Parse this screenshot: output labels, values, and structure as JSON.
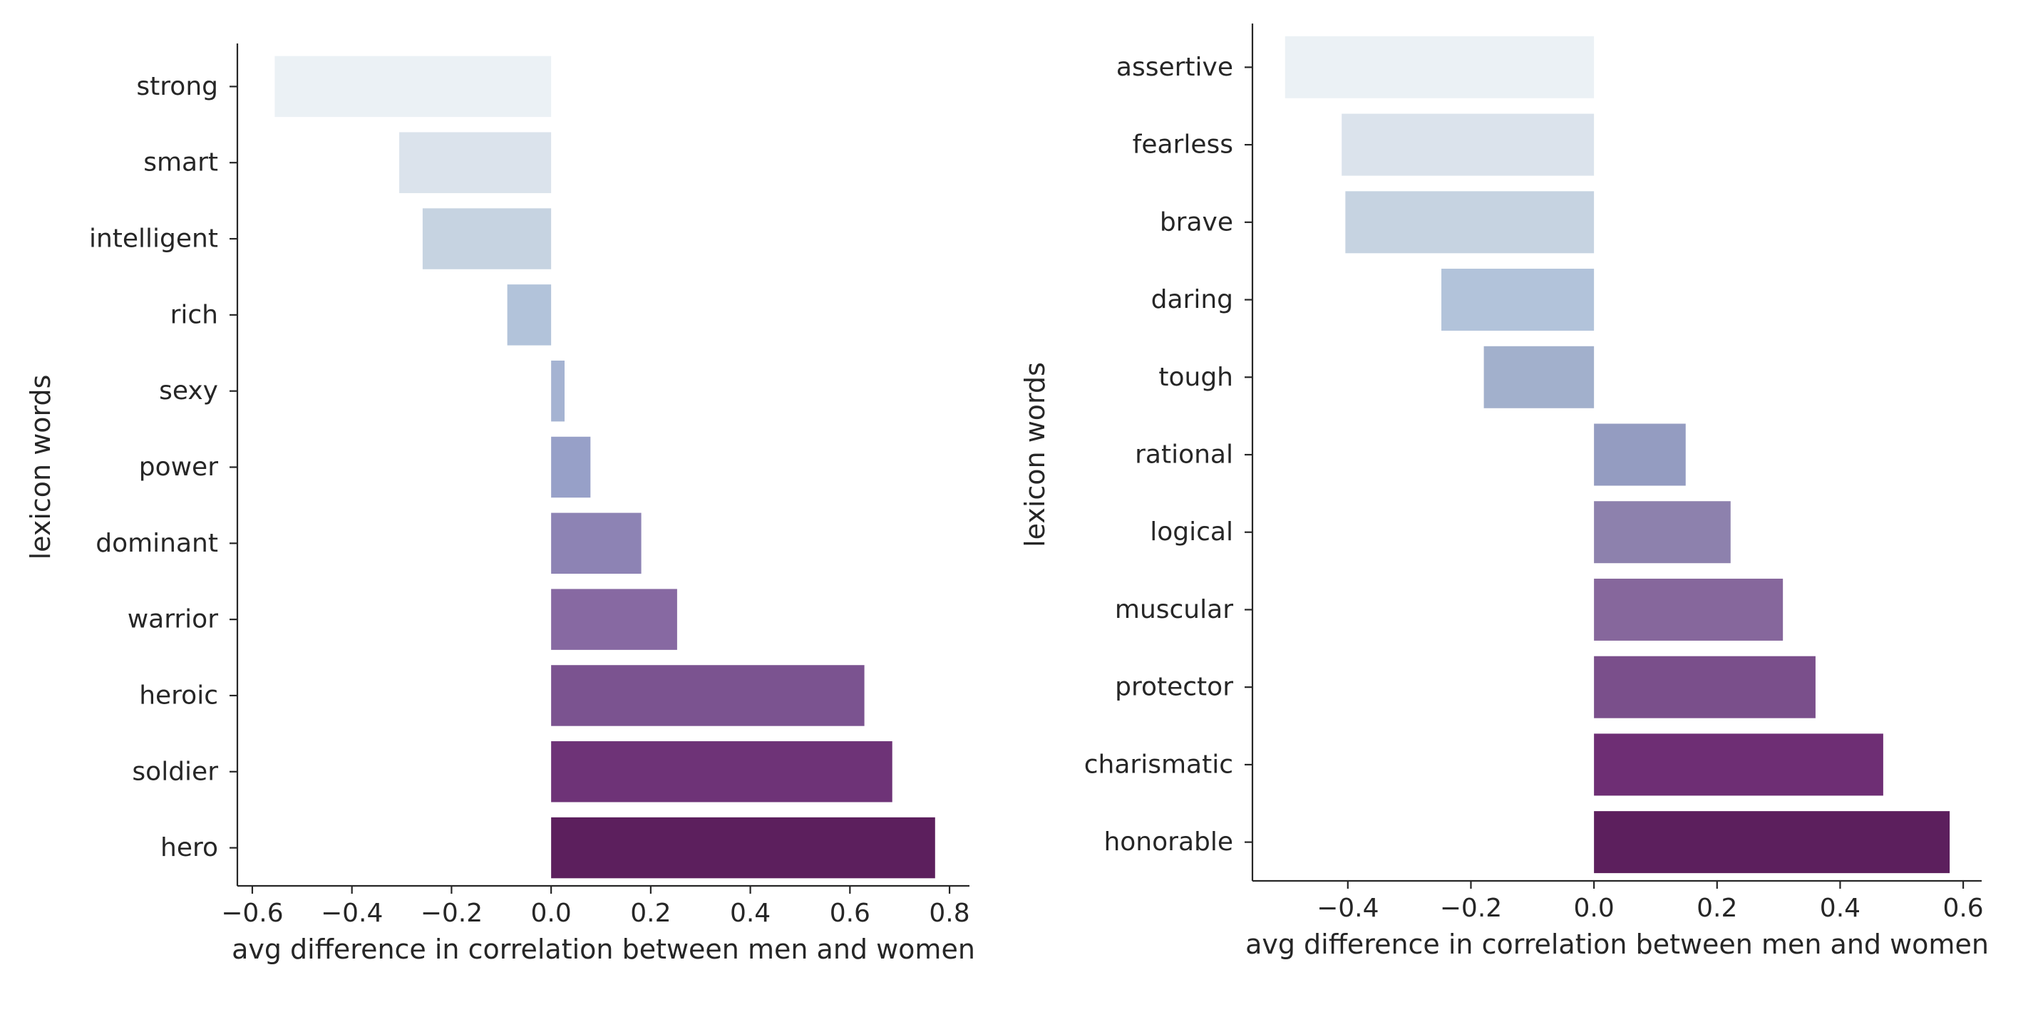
{
  "chart_data": [
    {
      "type": "bar",
      "orientation": "horizontal",
      "title": "",
      "xlabel": "avg difference in correlation between men and women",
      "ylabel": "lexicon words",
      "xlim": [
        -0.63,
        0.84
      ],
      "xticks": [
        -0.6,
        -0.4,
        -0.2,
        0.0,
        0.2,
        0.4,
        0.6,
        0.8
      ],
      "xtick_labels": [
        "−0.6",
        "−0.4",
        "−0.2",
        "0.0",
        "0.2",
        "0.4",
        "0.6",
        "0.8"
      ],
      "grid": false,
      "legend": "none",
      "categories": [
        "strong",
        "smart",
        "intelligent",
        "rich",
        "sexy",
        "power",
        "dominant",
        "warrior",
        "heroic",
        "soldier",
        "hero"
      ],
      "values": [
        -0.555,
        -0.305,
        -0.258,
        -0.088,
        0.027,
        0.079,
        0.181,
        0.253,
        0.629,
        0.685,
        0.771
      ],
      "colors": [
        "#ebf1f5",
        "#dbe3ec",
        "#c6d3e1",
        "#b2c3da",
        "#a5b3d2",
        "#97a0c8",
        "#8d83b4",
        "#8769a2",
        "#7b5390",
        "#6e3377",
        "#5c1f5d"
      ]
    },
    {
      "type": "bar",
      "orientation": "horizontal",
      "title": "",
      "xlabel": "avg difference in correlation between men and women",
      "ylabel": "lexicon words",
      "xlim": [
        -0.555,
        0.63
      ],
      "xticks": [
        -0.4,
        -0.2,
        0.0,
        0.2,
        0.4,
        0.6
      ],
      "xtick_labels": [
        "−0.4",
        "−0.2",
        "0.0",
        "0.2",
        "0.4",
        "0.6"
      ],
      "grid": false,
      "legend": "none",
      "categories": [
        "assertive",
        "fearless",
        "brave",
        "daring",
        "tough",
        "rational",
        "logical",
        "muscular",
        "protector",
        "charismatic",
        "honorable"
      ],
      "values": [
        -0.502,
        -0.41,
        -0.404,
        -0.248,
        -0.179,
        0.149,
        0.222,
        0.307,
        0.36,
        0.47,
        0.578
      ],
      "colors": [
        "#ebf1f5",
        "#dbe3ec",
        "#c6d3e1",
        "#b2c3da",
        "#a2b0cc",
        "#949cc1",
        "#8d81ad",
        "#86679c",
        "#7a4f8b",
        "#6e2e74",
        "#5c1f5d"
      ]
    }
  ]
}
